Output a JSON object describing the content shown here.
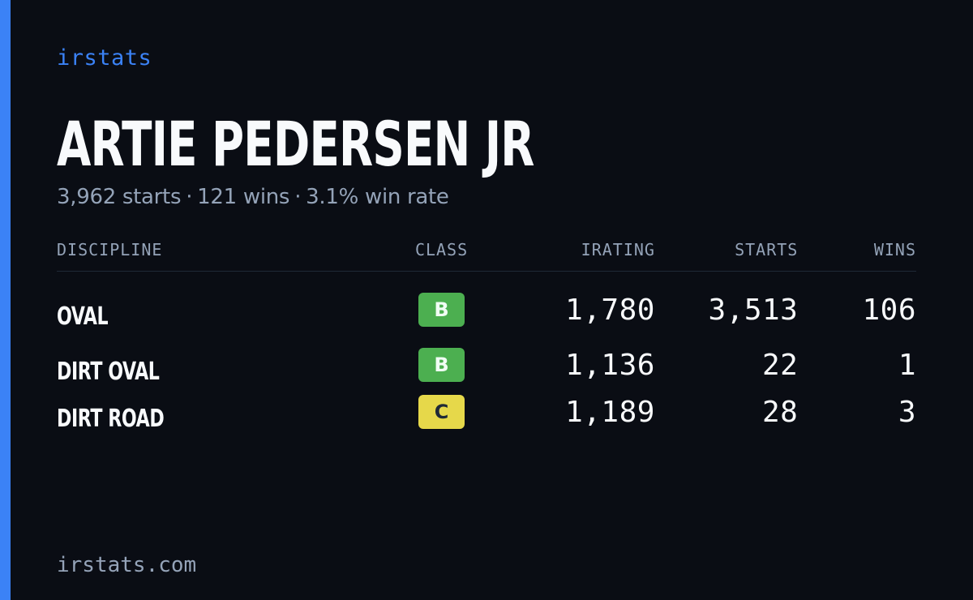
{
  "brand": "irstats",
  "driver": {
    "name": "ARTIE PEDERSEN JR",
    "starts_text": "3,962 starts",
    "wins_text": "121 wins",
    "win_rate_text": "3.1% win rate",
    "separator": "·"
  },
  "table": {
    "headers": {
      "discipline": "DISCIPLINE",
      "class": "CLASS",
      "irating": "IRATING",
      "starts": "STARTS",
      "wins": "WINS"
    },
    "rows": [
      {
        "discipline": "OVAL",
        "class": "B",
        "irating": "1,780",
        "starts": "3,513",
        "wins": "106"
      },
      {
        "discipline": "DIRT OVAL",
        "class": "B",
        "irating": "1,136",
        "starts": "22",
        "wins": "1"
      },
      {
        "discipline": "DIRT ROAD",
        "class": "C",
        "irating": "1,189",
        "starts": "28",
        "wins": "3"
      }
    ]
  },
  "footer": "irstats.com",
  "colors": {
    "background": "#0a0d14",
    "accent": "#3b82f6",
    "class_b": "#4caf50",
    "class_c": "#e6d84a",
    "muted_text": "#94a3b8",
    "primary_text": "#f8fafc"
  }
}
